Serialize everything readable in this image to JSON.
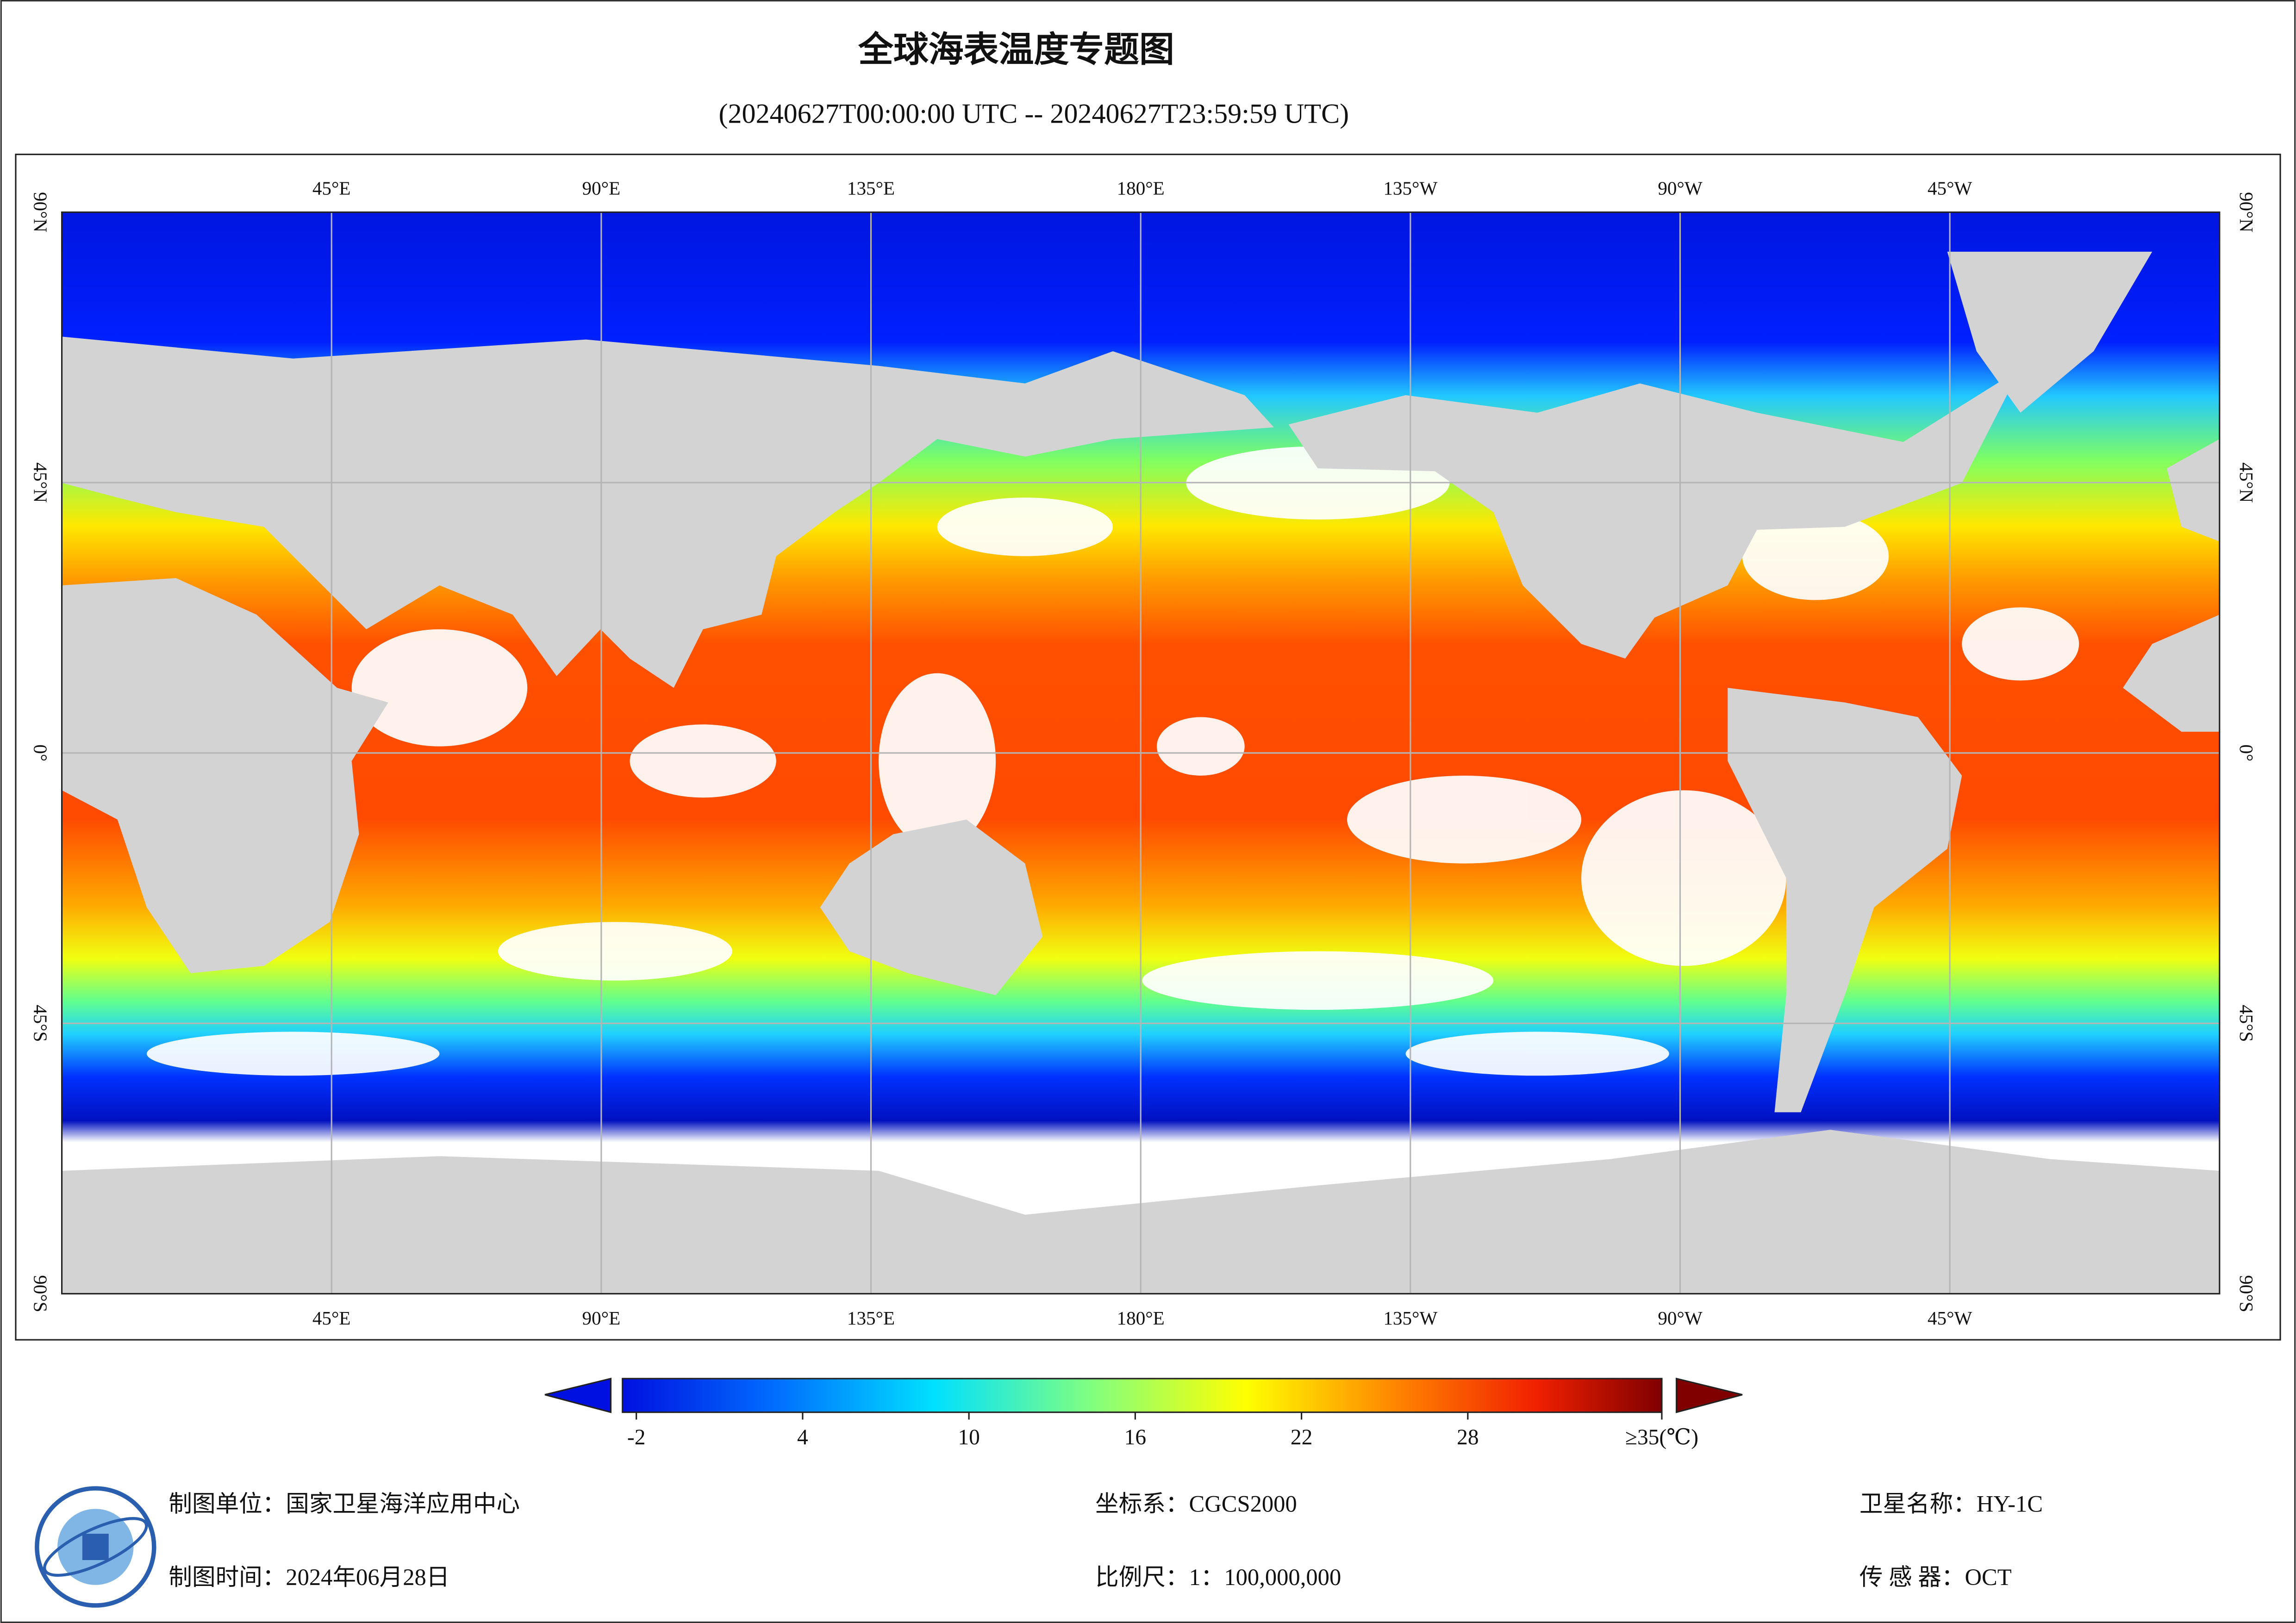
{
  "title": "全球海表温度专题图",
  "subtitle": "(20240627T00:00:00 UTC -- 20240627T23:59:59 UTC)",
  "map": {
    "lon_labels": [
      "45°E",
      "90°E",
      "135°E",
      "180°E",
      "135°W",
      "90°W",
      "45°W"
    ],
    "lat_labels": [
      "90°N",
      "45°N",
      "0°",
      "45°S",
      "90°S"
    ]
  },
  "colorbar": {
    "range": [
      -2.5,
      35
    ],
    "ticks": [
      -2,
      4,
      10,
      16,
      22,
      28,
      {
        "value": 35,
        "label": "≥35(℃)"
      }
    ]
  },
  "footer": [
    {
      "label": "制图单位：",
      "value": "国家卫星海洋应用中心"
    },
    {
      "label": "坐标系：",
      "value": "CGCS2000"
    },
    {
      "label": "卫星名称：",
      "value": "HY-1C"
    },
    {
      "label": "制图时间：",
      "value": "2024年06月28日"
    },
    {
      "label": "比例尺：",
      "value": "1：100,000,000"
    },
    {
      "label": "传 感 器：",
      "value": "OCT"
    }
  ]
}
